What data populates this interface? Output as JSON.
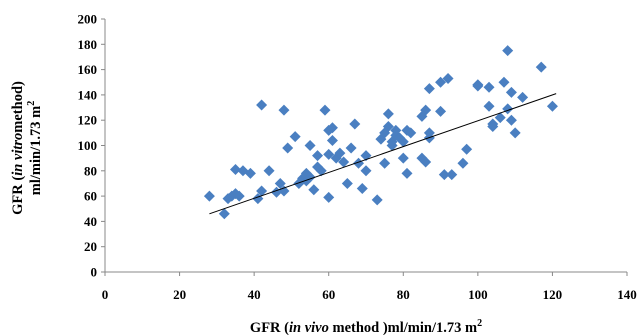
{
  "chart_data": {
    "type": "scatter",
    "title": "",
    "xlabel": {
      "pre": "GFR (",
      "italic": "in vivo",
      "post": " method )ml/min/1.73 m",
      "sup": "2"
    },
    "ylabel": {
      "line1_pre": "GFR (",
      "line1_italic": "in vitro",
      "line1_post": "method)",
      "line2": "ml/min/1.73 m",
      "line2_sup": "2"
    },
    "xlim": [
      0,
      140
    ],
    "ylim": [
      0,
      200
    ],
    "xticks": [
      0,
      20,
      40,
      60,
      80,
      100,
      120,
      140
    ],
    "yticks": [
      0,
      20,
      40,
      60,
      80,
      100,
      120,
      140,
      160,
      180,
      200
    ],
    "grid": false,
    "legend": "none",
    "marker": "diamond",
    "marker_color": "#4a7fc1",
    "trendline": {
      "type": "linear",
      "x": [
        28,
        121
      ],
      "y": [
        46,
        141
      ],
      "color": "#000000"
    },
    "points": [
      [
        28,
        60
      ],
      [
        32,
        46
      ],
      [
        33,
        58
      ],
      [
        34,
        60
      ],
      [
        35,
        62
      ],
      [
        35,
        81
      ],
      [
        36,
        60
      ],
      [
        37,
        80
      ],
      [
        39,
        78
      ],
      [
        41,
        58
      ],
      [
        42,
        64
      ],
      [
        42,
        132
      ],
      [
        44,
        80
      ],
      [
        46,
        63
      ],
      [
        47,
        70
      ],
      [
        48,
        64
      ],
      [
        48,
        128
      ],
      [
        49,
        98
      ],
      [
        51,
        107
      ],
      [
        52,
        70
      ],
      [
        53,
        74
      ],
      [
        53,
        73
      ],
      [
        54,
        72
      ],
      [
        54,
        78
      ],
      [
        55,
        75
      ],
      [
        55,
        100
      ],
      [
        56,
        65
      ],
      [
        57,
        83
      ],
      [
        57,
        92
      ],
      [
        58,
        80
      ],
      [
        59,
        128
      ],
      [
        60,
        59
      ],
      [
        60,
        93
      ],
      [
        60,
        112
      ],
      [
        61,
        114
      ],
      [
        61,
        104
      ],
      [
        62,
        90
      ],
      [
        63,
        94
      ],
      [
        64,
        87
      ],
      [
        65,
        70
      ],
      [
        66,
        98
      ],
      [
        67,
        117
      ],
      [
        68,
        86
      ],
      [
        69,
        66
      ],
      [
        70,
        92
      ],
      [
        70,
        80
      ],
      [
        73,
        57
      ],
      [
        74,
        105
      ],
      [
        75,
        110
      ],
      [
        75,
        86
      ],
      [
        76,
        115
      ],
      [
        76,
        125
      ],
      [
        77,
        100
      ],
      [
        77,
        103
      ],
      [
        78,
        108
      ],
      [
        78,
        112
      ],
      [
        79,
        106
      ],
      [
        80,
        103
      ],
      [
        80,
        90
      ],
      [
        81,
        112
      ],
      [
        81,
        78
      ],
      [
        82,
        110
      ],
      [
        85,
        90
      ],
      [
        85,
        123
      ],
      [
        86,
        128
      ],
      [
        86,
        87
      ],
      [
        87,
        106
      ],
      [
        87,
        110
      ],
      [
        87,
        145
      ],
      [
        90,
        127
      ],
      [
        90,
        150
      ],
      [
        91,
        77
      ],
      [
        92,
        153
      ],
      [
        93,
        77
      ],
      [
        96,
        86
      ],
      [
        97,
        97
      ],
      [
        100,
        147
      ],
      [
        100,
        148
      ],
      [
        103,
        146
      ],
      [
        103,
        131
      ],
      [
        104,
        117
      ],
      [
        104,
        115
      ],
      [
        106,
        122
      ],
      [
        107,
        150
      ],
      [
        108,
        175
      ],
      [
        108,
        129
      ],
      [
        109,
        142
      ],
      [
        109,
        120
      ],
      [
        110,
        110
      ],
      [
        112,
        138
      ],
      [
        117,
        162
      ],
      [
        120,
        131
      ]
    ]
  }
}
